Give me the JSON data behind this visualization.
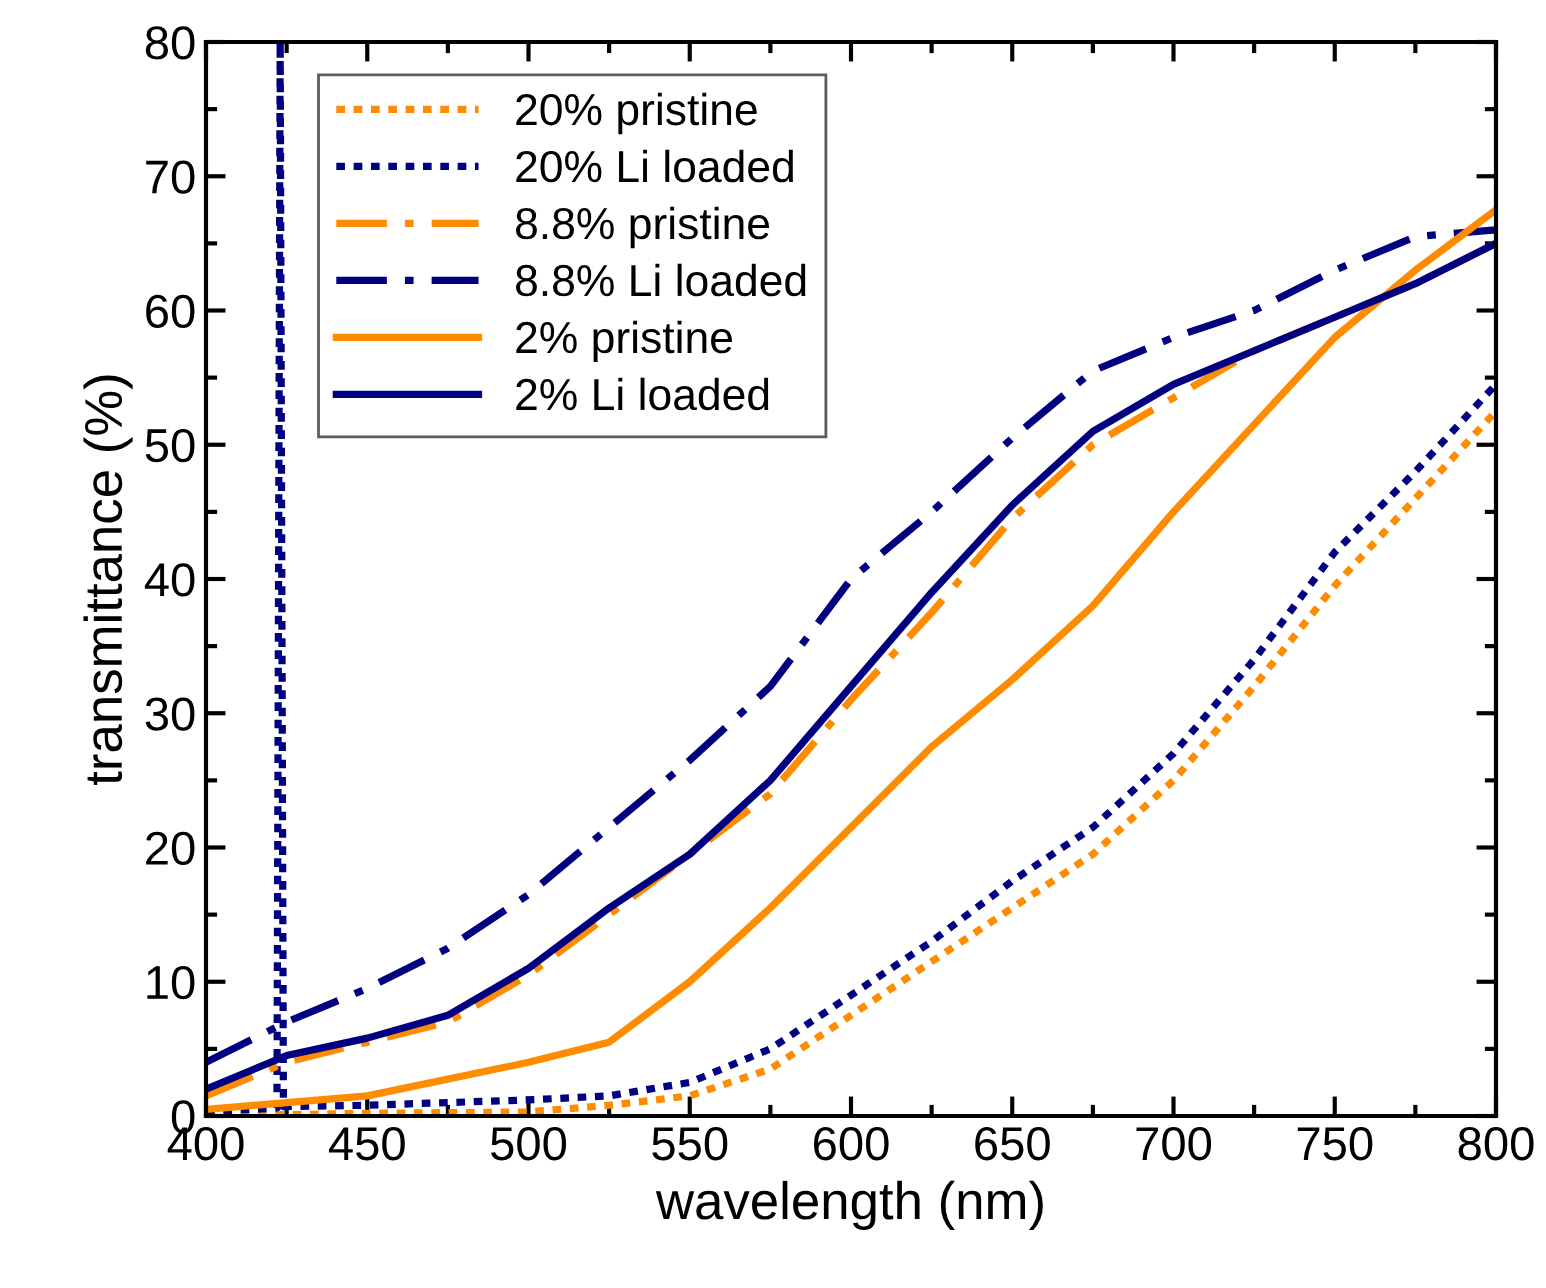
{
  "chart_data": {
    "type": "line",
    "xlabel": "wavelength (nm)",
    "ylabel": "transmittance (%)",
    "xlim": [
      400,
      800
    ],
    "ylim": [
      0,
      80
    ],
    "xticks": [
      400,
      450,
      500,
      550,
      600,
      650,
      700,
      750,
      800
    ],
    "yticks": [
      0,
      10,
      20,
      30,
      40,
      50,
      60,
      70,
      80
    ],
    "grid": false,
    "legend": "top left",
    "marker": "none",
    "series": [
      {
        "name": "20% pristine",
        "color": "#ff8c00",
        "line_style": "dotted",
        "x": [
          400,
          450,
          500,
          525,
          550,
          575,
          600,
          625,
          650,
          675,
          700,
          725,
          750,
          775,
          800
        ],
        "values": [
          0,
          0.2,
          0.3,
          0.8,
          1.5,
          3.5,
          7.5,
          11.5,
          15.5,
          19.5,
          25,
          32,
          39.5,
          46,
          52.5
        ]
      },
      {
        "name": "20% Li loaded",
        "color": "#000080",
        "line_style": "dotted",
        "x": [
          400,
          422,
          423,
          424,
          450,
          500,
          525,
          550,
          575,
          600,
          625,
          650,
          675,
          700,
          725,
          750,
          775,
          800
        ],
        "values": [
          0.3,
          0.6,
          80,
          0.7,
          0.8,
          1.2,
          1.5,
          2.5,
          5,
          9,
          13,
          17.5,
          21.5,
          27,
          34,
          42,
          48,
          54.5
        ]
      },
      {
        "name": "8.8% pristine",
        "color": "#ff8c00",
        "line_style": "dashdot",
        "x": [
          400,
          425,
          450,
          475,
          500,
          525,
          550,
          575,
          600,
          625,
          650,
          675,
          700,
          725,
          750,
          775,
          800
        ],
        "values": [
          1.5,
          4,
          5.5,
          7,
          10.5,
          15,
          19.5,
          24,
          31,
          37.5,
          44.5,
          50,
          53.5,
          57,
          59.5,
          62,
          65
        ]
      },
      {
        "name": "8.8% Li loaded",
        "color": "#000080",
        "line_style": "dashdot",
        "x": [
          400,
          425,
          450,
          475,
          500,
          525,
          550,
          575,
          600,
          625,
          650,
          675,
          700,
          725,
          750,
          775,
          800
        ],
        "values": [
          4,
          7,
          9.5,
          12.5,
          16.5,
          21.5,
          26.5,
          32,
          40,
          45,
          50.5,
          55.5,
          58,
          60,
          63,
          65.5,
          66
        ]
      },
      {
        "name": "2% pristine",
        "color": "#ff8c00",
        "line_style": "solid",
        "x": [
          400,
          450,
          500,
          525,
          550,
          575,
          600,
          625,
          650,
          675,
          700,
          725,
          750,
          775,
          800
        ],
        "values": [
          0.5,
          1.5,
          4,
          5.5,
          10,
          15.5,
          21.5,
          27.5,
          32.5,
          38,
          45,
          51.5,
          58,
          63,
          67.5
        ]
      },
      {
        "name": "2% Li loaded",
        "color": "#000080",
        "line_style": "solid",
        "x": [
          400,
          425,
          450,
          475,
          500,
          525,
          550,
          575,
          600,
          625,
          650,
          675,
          700,
          725,
          750,
          775,
          800
        ],
        "values": [
          2,
          4.5,
          5.8,
          7.5,
          11,
          15.5,
          19.5,
          25,
          32,
          39,
          45.5,
          51,
          54.5,
          57,
          59.5,
          62,
          65
        ]
      }
    ]
  }
}
